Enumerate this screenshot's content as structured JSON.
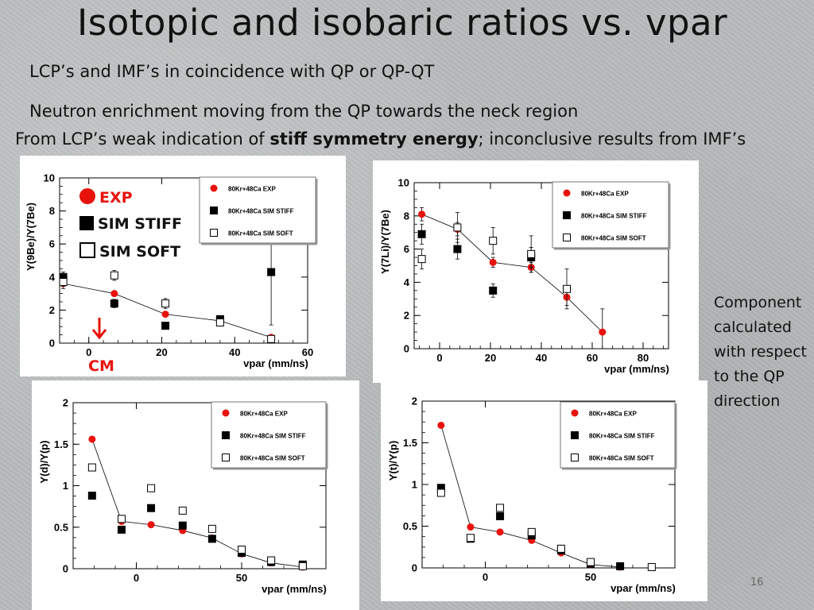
{
  "slide": {
    "title": "Isotopic and isobaric ratios vs. vpar",
    "bullet1": "LCP’s and IMF’s in coincidence with QP or QP-QT",
    "bullet2": "Neutron enrichment moving from the QP towards the neck region",
    "bullet3_pre": "From LCP’s weak indication of ",
    "bullet3_bold": "stiff symmetry energy",
    "bullet3_post": "; inconclusive results from IMF’s",
    "side_note": "Component calculated with respect to the QP direction",
    "page_number": "16"
  },
  "annotations": {
    "exp": "EXP",
    "sim_stiff": "SIM STIFF",
    "sim_soft": "SIM SOFT",
    "cm": "CM",
    "accent_color": "#e8120c"
  },
  "chart_data": [
    {
      "type": "scatter",
      "ylabel": "Y(9Be)/Y(7Be)",
      "xlabel": "vpar (mm/ns)",
      "xlim": [
        -8,
        60
      ],
      "ylim": [
        0,
        10
      ],
      "xticks": [
        0,
        20,
        40,
        60
      ],
      "yticks": [
        0,
        2,
        4,
        6,
        8,
        10
      ],
      "legend": "top-right",
      "series": [
        {
          "name": "80Kr+48Ca EXP",
          "marker": "circle",
          "color": "#e8120c",
          "line": true,
          "x": [
            -7,
            7,
            21,
            36,
            50
          ],
          "y": [
            3.6,
            3.0,
            1.75,
            1.35,
            0.35
          ],
          "err": [
            0.3,
            0,
            0,
            0,
            0
          ]
        },
        {
          "name": "80Kr+48Ca SIM STIFF",
          "marker": "square",
          "color": "#000000",
          "x": [
            -7,
            7,
            21,
            36,
            50
          ],
          "y": [
            4.0,
            2.4,
            1.05,
            1.45,
            4.3
          ],
          "err": [
            0.3,
            0.25,
            0,
            0.2,
            3.2
          ]
        },
        {
          "name": "80Kr+48Ca SIM SOFT",
          "marker": "open-square",
          "color": "#000000",
          "x": [
            -7,
            7,
            21,
            36,
            50
          ],
          "y": [
            3.7,
            4.1,
            2.4,
            1.25,
            0.25
          ],
          "err": [
            0.25,
            0.3,
            0.3,
            0.2,
            0
          ]
        }
      ]
    },
    {
      "type": "scatter",
      "ylabel": "Y(7Li)/Y(7Be)",
      "xlabel": "vpar (mm/ns)",
      "xlim": [
        -10,
        90
      ],
      "ylim": [
        0,
        10
      ],
      "xticks": [
        0,
        20,
        40,
        60,
        80
      ],
      "yticks": [
        0,
        2,
        4,
        6,
        8,
        10
      ],
      "legend": "top-right",
      "series": [
        {
          "name": "80Kr+48Ca EXP",
          "marker": "circle",
          "color": "#e8120c",
          "line": true,
          "x": [
            -7,
            7,
            21,
            36,
            50,
            64
          ],
          "y": [
            8.1,
            7.2,
            5.2,
            4.9,
            3.1,
            1.0
          ],
          "err": [
            0.4,
            0.4,
            0.3,
            0.3,
            0.5,
            1.4
          ]
        },
        {
          "name": "80Kr+48Ca SIM STIFF",
          "marker": "square",
          "color": "#000000",
          "x": [
            -7,
            7,
            21,
            36
          ],
          "y": [
            6.9,
            6.0,
            3.5,
            5.5
          ],
          "err": [
            0.6,
            0.6,
            0.4,
            0.6
          ]
        },
        {
          "name": "80Kr+48Ca SIM SOFT",
          "marker": "open-square",
          "color": "#000000",
          "x": [
            -7,
            7,
            21,
            36,
            50
          ],
          "y": [
            5.4,
            7.3,
            6.5,
            5.7,
            3.6
          ],
          "err": [
            0.6,
            0.9,
            0.8,
            1.1,
            1.2
          ]
        }
      ]
    },
    {
      "type": "scatter",
      "ylabel": "Y(d)/Y(p)",
      "xlabel": "vpar (mm/ns)",
      "xlim": [
        -30,
        90
      ],
      "ylim": [
        0,
        2
      ],
      "xticks": [
        0,
        50
      ],
      "yticks": [
        0,
        0.5,
        1,
        1.5,
        2
      ],
      "legend": "top-right",
      "series": [
        {
          "name": "80Kr+48Ca EXP",
          "marker": "circle",
          "color": "#e8120c",
          "line": true,
          "x": [
            -21,
            -7,
            7,
            22,
            36,
            50,
            64,
            79
          ],
          "y": [
            1.56,
            0.57,
            0.53,
            0.46,
            0.37,
            0.18,
            0.07,
            0.02
          ]
        },
        {
          "name": "80Kr+48Ca SIM STIFF",
          "marker": "square",
          "color": "#000000",
          "x": [
            -21,
            -7,
            7,
            22,
            36,
            50,
            64,
            79
          ],
          "y": [
            0.88,
            0.47,
            0.73,
            0.52,
            0.36,
            0.19,
            0.08,
            0.05
          ]
        },
        {
          "name": "80Kr+48Ca SIM SOFT",
          "marker": "open-square",
          "color": "#000000",
          "x": [
            -21,
            -7,
            7,
            22,
            36,
            50,
            64,
            79
          ],
          "y": [
            1.22,
            0.6,
            0.97,
            0.7,
            0.48,
            0.23,
            0.1,
            0.03
          ]
        }
      ]
    },
    {
      "type": "scatter",
      "ylabel": "Y(t)/Y(p)",
      "xlabel": "vpar (mm/ns)",
      "xlim": [
        -30,
        90
      ],
      "ylim": [
        0,
        2
      ],
      "xticks": [
        0,
        50
      ],
      "yticks": [
        0,
        0.5,
        1,
        1.5,
        2
      ],
      "legend": "top-right",
      "series": [
        {
          "name": "80Kr+48Ca EXP",
          "marker": "circle",
          "color": "#e8120c",
          "line": true,
          "x": [
            -21,
            -7,
            7,
            22,
            36,
            50,
            64
          ],
          "y": [
            1.71,
            0.49,
            0.43,
            0.33,
            0.18,
            0.04,
            0.01
          ]
        },
        {
          "name": "80Kr+48Ca SIM STIFF",
          "marker": "square",
          "color": "#000000",
          "x": [
            -21,
            -7,
            7,
            22,
            36,
            50,
            64
          ],
          "y": [
            0.96,
            0.35,
            0.62,
            0.39,
            0.21,
            0.05,
            0.02
          ]
        },
        {
          "name": "80Kr+48Ca SIM SOFT",
          "marker": "open-square",
          "color": "#000000",
          "x": [
            -21,
            -7,
            7,
            22,
            36,
            50,
            79
          ],
          "y": [
            0.9,
            0.36,
            0.72,
            0.43,
            0.23,
            0.07,
            0.01
          ]
        }
      ]
    }
  ]
}
